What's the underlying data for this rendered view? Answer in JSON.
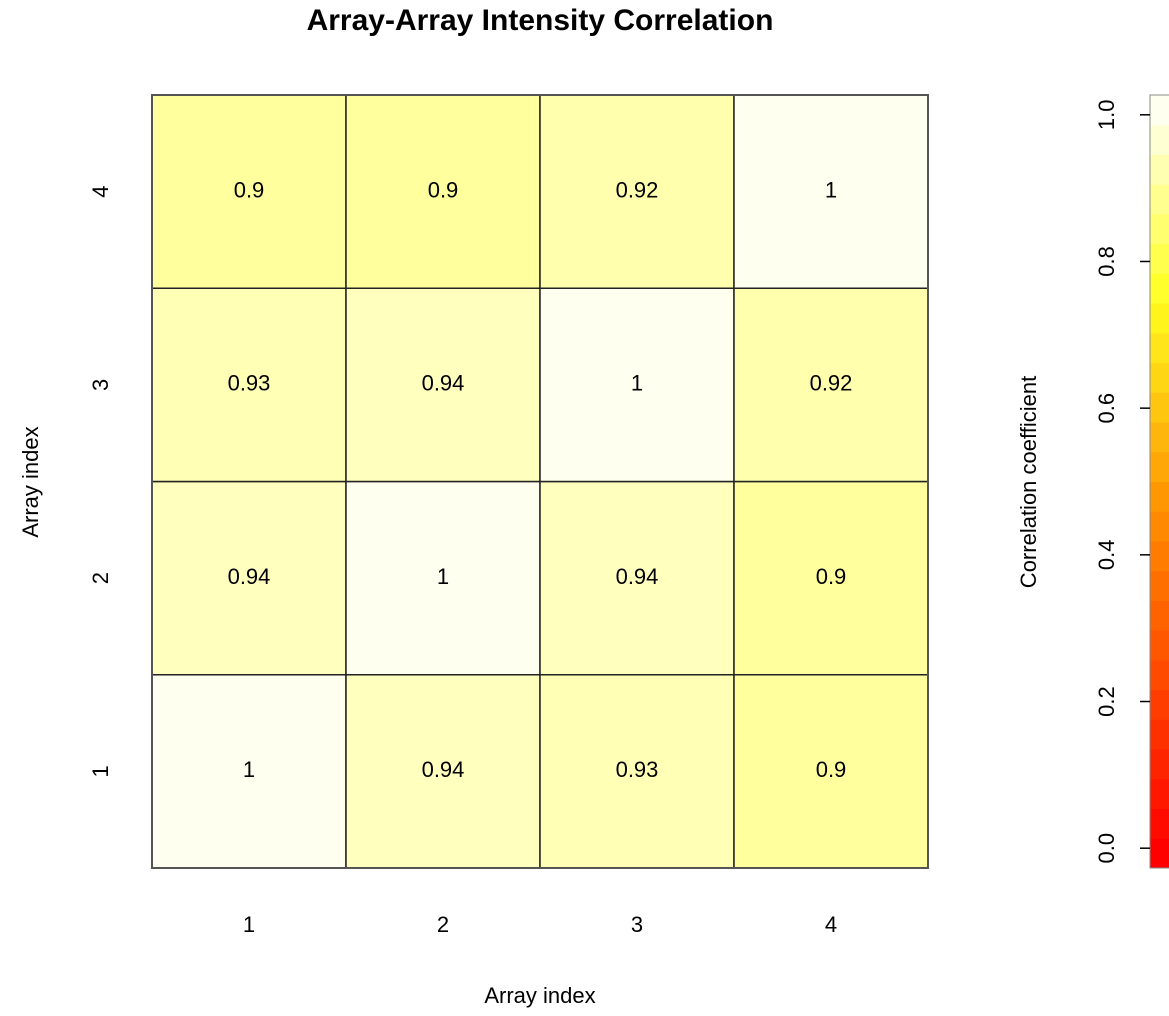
{
  "chart_data": {
    "type": "heatmap",
    "title": "Array-Array Intensity Correlation",
    "x_label": "Array index",
    "y_label": "Array index",
    "x_categories": [
      "1",
      "2",
      "3",
      "4"
    ],
    "y_categories": [
      "1",
      "2",
      "3",
      "4"
    ],
    "z": [
      [
        1,
        0.94,
        0.93,
        0.9
      ],
      [
        0.94,
        1,
        0.94,
        0.9
      ],
      [
        0.93,
        0.94,
        1,
        0.92
      ],
      [
        0.9,
        0.9,
        0.92,
        1
      ]
    ],
    "colorbar": {
      "label": "Correlation coefficient",
      "lim": [
        -0.027,
        1.027
      ],
      "ticks": [
        {
          "value": 0,
          "label": "0.0"
        },
        0.2,
        0.4,
        0.6,
        0.8,
        {
          "value": 1,
          "label": "1.0"
        }
      ],
      "colorscale": [
        [
          0,
          "#ff0000"
        ],
        [
          0.45,
          "#ff8c00"
        ],
        [
          0.75,
          "#ffff20"
        ],
        [
          1,
          "#fffff0"
        ]
      ]
    }
  }
}
